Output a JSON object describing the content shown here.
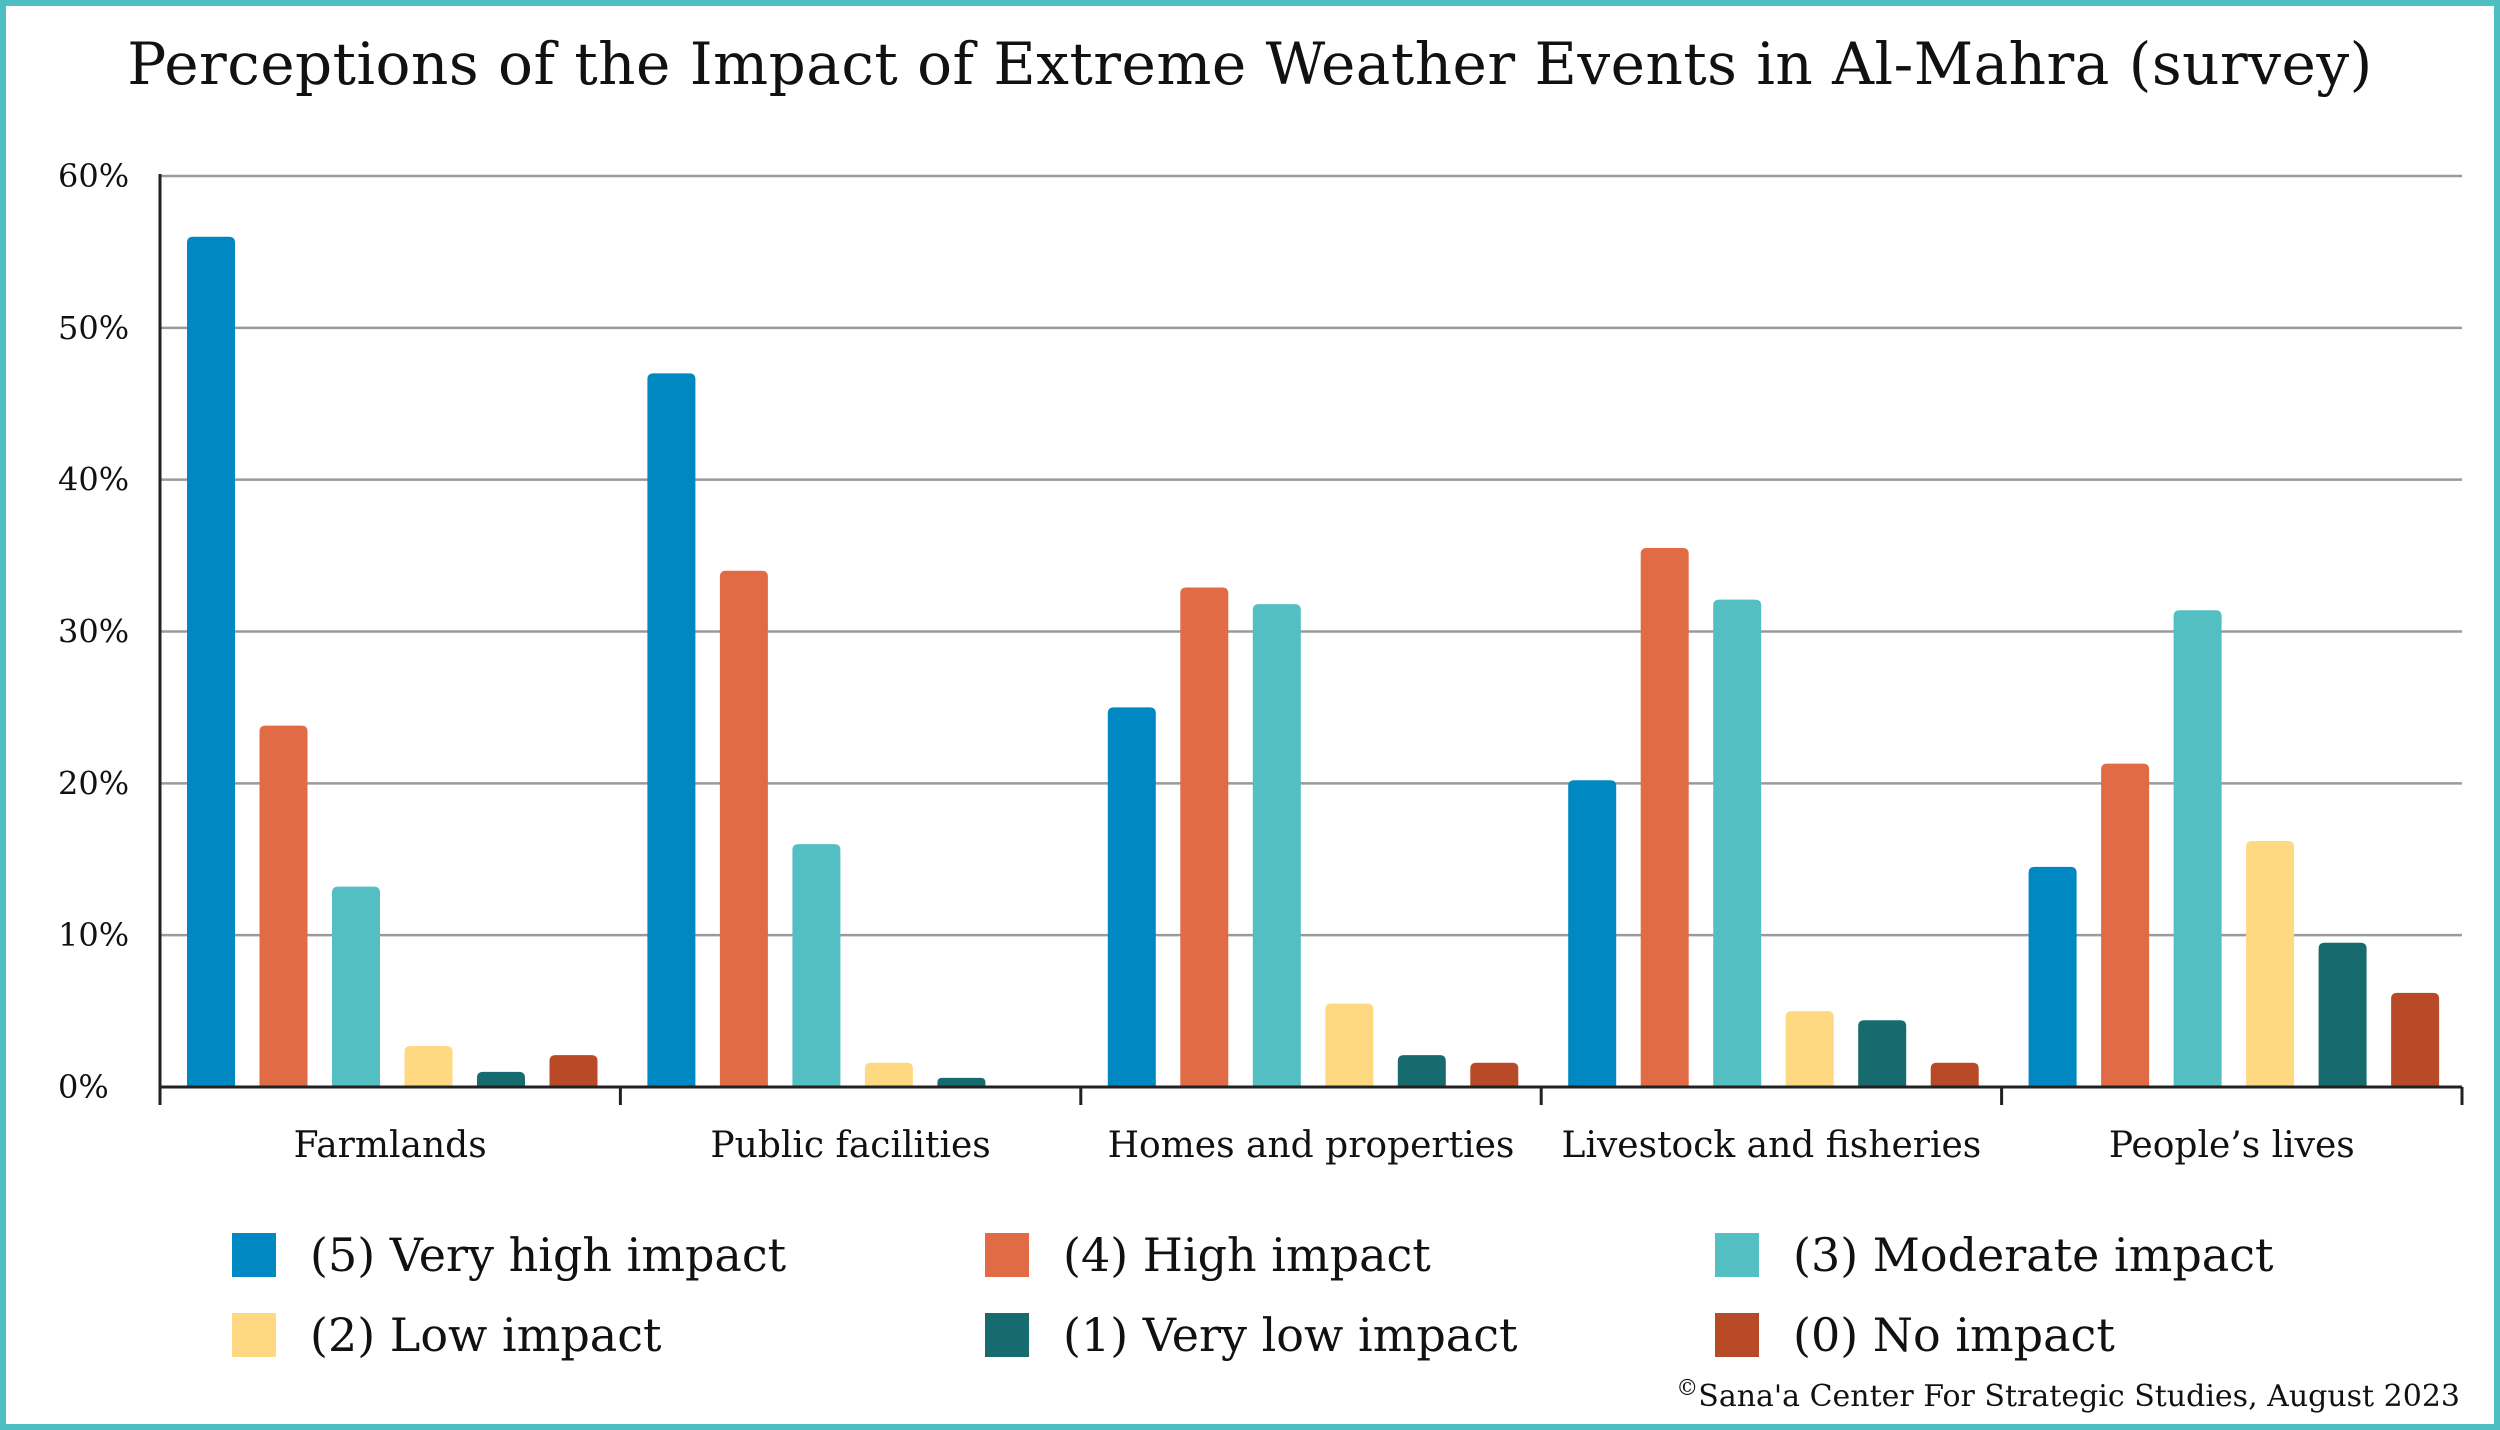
{
  "title": "Perceptions of the Impact of Extreme Weather Events in Al-Mahra (survey)",
  "credit": {
    "symbol": "©",
    "text": "Sana'a Center For Strategic Studies, August 2023"
  },
  "colors": {
    "frame": "#4dbfc2",
    "grid": "#9a9a9a",
    "axis": "#222222"
  },
  "chart_data": {
    "type": "bar",
    "title": "Perceptions of the Impact of Extreme Weather Events in Al-Mahra (survey)",
    "xlabel": "",
    "ylabel": "",
    "ylim": [
      0,
      60
    ],
    "yticks": [
      0,
      10,
      20,
      30,
      40,
      50,
      60
    ],
    "ytick_labels": [
      "0%",
      "10%",
      "20%",
      "30%",
      "40%",
      "50%",
      "60%"
    ],
    "grid": true,
    "legend_position": "bottom",
    "categories": [
      "Farmlands",
      "Public facilities",
      "Homes and properties",
      "Livestock and fisheries",
      "People’s lives"
    ],
    "series": [
      {
        "name": "(5) Very high impact",
        "color": "#0088c2",
        "values": [
          56,
          47,
          25,
          20.2,
          14.5
        ]
      },
      {
        "name": "(4) High impact",
        "color": "#e06b45",
        "values": [
          23.8,
          34,
          32.9,
          35.5,
          21.3
        ]
      },
      {
        "name": "(3) Moderate impact",
        "color": "#54bfc2",
        "values": [
          13.2,
          16,
          31.8,
          32.1,
          31.4
        ]
      },
      {
        "name": "(2) Low impact",
        "color": "#ffd882",
        "values": [
          2.7,
          1.6,
          5.5,
          5,
          16.2
        ]
      },
      {
        "name": "(1) Very low impact",
        "color": "#176b6e",
        "values": [
          1,
          0.6,
          2.1,
          4.4,
          9.5
        ]
      },
      {
        "name": "(0) No impact",
        "color": "#b94a28",
        "values": [
          2.1,
          0,
          1.6,
          1.6,
          6.2
        ]
      }
    ]
  }
}
